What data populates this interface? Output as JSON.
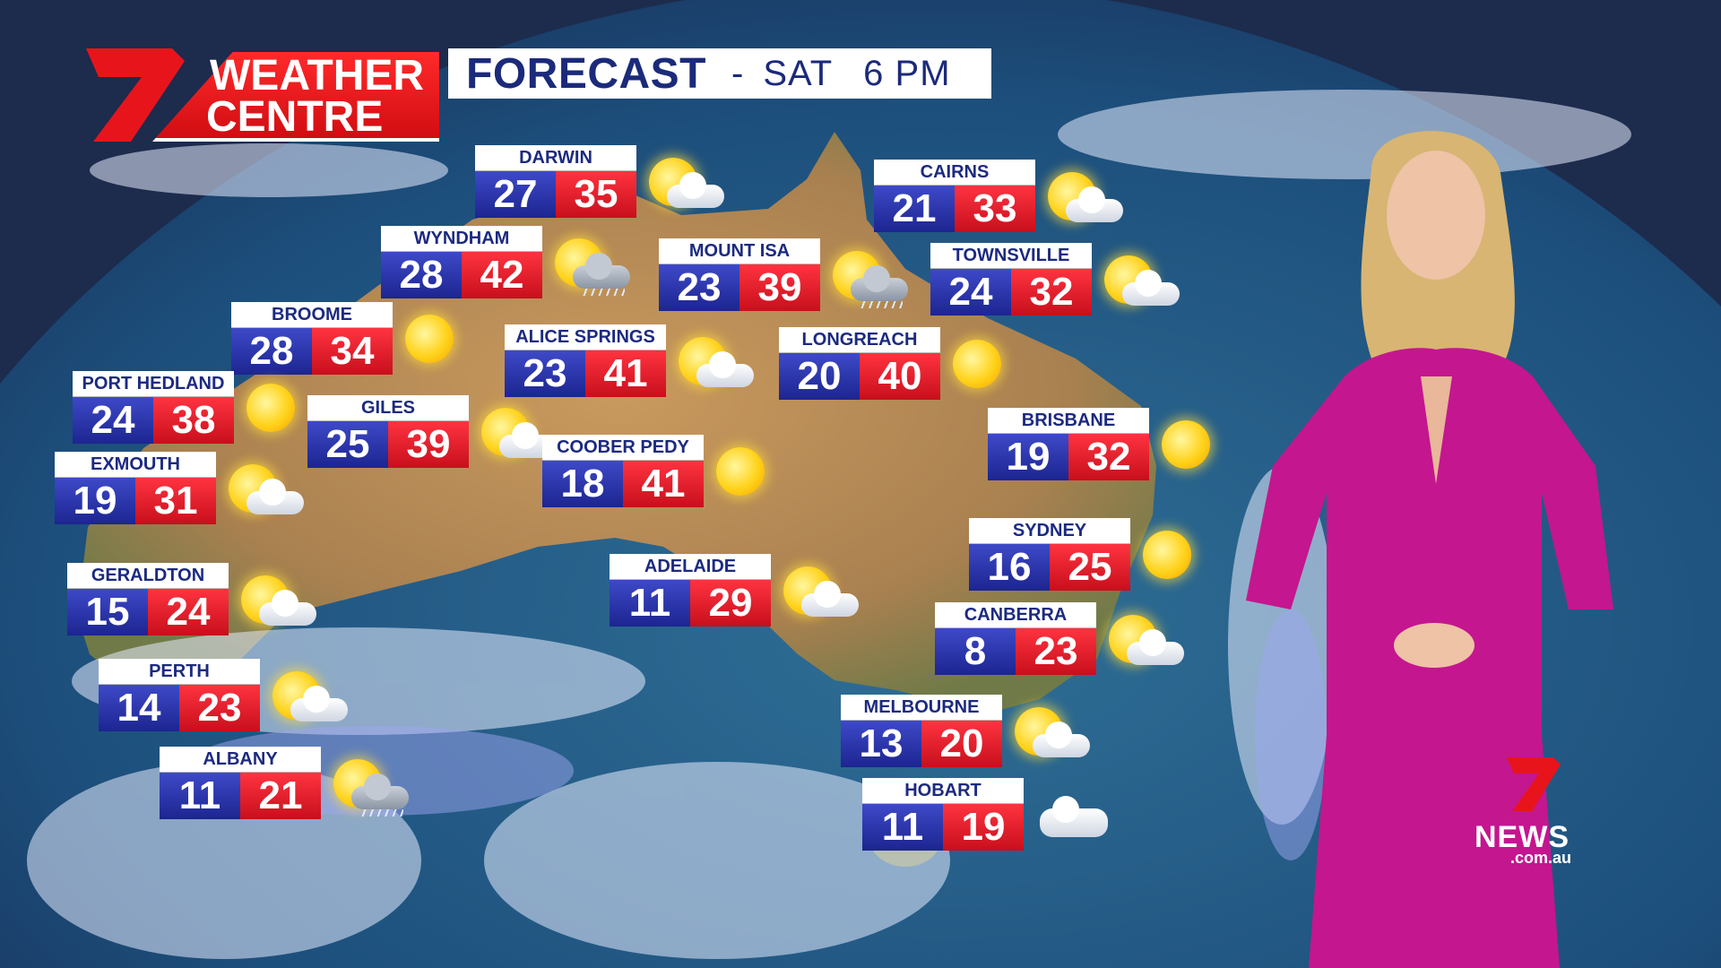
{
  "brand": {
    "logo_line1": "WEATHER",
    "logo_line2": "CENTRE",
    "logo_color": "#e8141c"
  },
  "header": {
    "title": "FORECAST",
    "separator": "-",
    "day": "SAT",
    "time": "6 PM"
  },
  "colors": {
    "min_temp": "#2a33a8",
    "max_temp": "#e3172a",
    "label_text": "#1c2a80"
  },
  "cities": [
    {
      "name": "DARWIN",
      "min": "27",
      "max": "35",
      "icon": "sun-cloud-icon"
    },
    {
      "name": "WYNDHAM",
      "min": "28",
      "max": "42",
      "icon": "storm-icon"
    },
    {
      "name": "BROOME",
      "min": "28",
      "max": "34",
      "icon": "sun-icon"
    },
    {
      "name": "PORT HEDLAND",
      "min": "24",
      "max": "38",
      "icon": "sun-icon"
    },
    {
      "name": "EXMOUTH",
      "min": "19",
      "max": "31",
      "icon": "sun-cloud-icon"
    },
    {
      "name": "GILES",
      "min": "25",
      "max": "39",
      "icon": "sun-cloud-icon"
    },
    {
      "name": "ALICE SPRINGS",
      "min": "23",
      "max": "41",
      "icon": "sun-cloud-icon"
    },
    {
      "name": "COOBER PEDY",
      "min": "18",
      "max": "41",
      "icon": "sun-icon"
    },
    {
      "name": "MOUNT ISA",
      "min": "23",
      "max": "39",
      "icon": "storm-icon"
    },
    {
      "name": "CAIRNS",
      "min": "21",
      "max": "33",
      "icon": "sun-cloud-icon"
    },
    {
      "name": "TOWNSVILLE",
      "min": "24",
      "max": "32",
      "icon": "sun-cloud-icon"
    },
    {
      "name": "LONGREACH",
      "min": "20",
      "max": "40",
      "icon": "sun-icon"
    },
    {
      "name": "BRISBANE",
      "min": "19",
      "max": "32",
      "icon": "sun-icon"
    },
    {
      "name": "SYDNEY",
      "min": "16",
      "max": "25",
      "icon": "sun-icon"
    },
    {
      "name": "CANBERRA",
      "min": "8",
      "max": "23",
      "icon": "sun-cloud-icon"
    },
    {
      "name": "ADELAIDE",
      "min": "11",
      "max": "29",
      "icon": "sun-cloud-icon"
    },
    {
      "name": "GERALDTON",
      "min": "15",
      "max": "24",
      "icon": "sun-cloud-icon"
    },
    {
      "name": "PERTH",
      "min": "14",
      "max": "23",
      "icon": "sun-cloud-icon"
    },
    {
      "name": "ALBANY",
      "min": "11",
      "max": "21",
      "icon": "shower-icon"
    },
    {
      "name": "MELBOURNE",
      "min": "13",
      "max": "20",
      "icon": "sun-cloud-icon"
    },
    {
      "name": "HOBART",
      "min": "11",
      "max": "19",
      "icon": "cloud-icon"
    }
  ],
  "channel": {
    "name": "NEWS",
    "domain": ".com.au"
  }
}
